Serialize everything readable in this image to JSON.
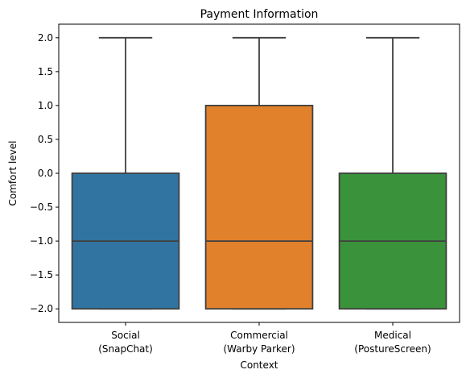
{
  "chart_data": {
    "type": "box",
    "title": "Payment Information",
    "xlabel": "Context",
    "ylabel": "Comfort level",
    "ylim": [
      -2.2,
      2.2
    ],
    "yticks": [
      {
        "value": 2.0,
        "label": "2.0"
      },
      {
        "value": 1.5,
        "label": "1.5"
      },
      {
        "value": 1.0,
        "label": "1.0"
      },
      {
        "value": 0.5,
        "label": "0.5"
      },
      {
        "value": 0.0,
        "label": "0.0"
      },
      {
        "value": -0.5,
        "label": "−0.5"
      },
      {
        "value": -1.0,
        "label": "−1.0"
      },
      {
        "value": -1.5,
        "label": "−1.5"
      },
      {
        "value": -2.0,
        "label": "−2.0"
      }
    ],
    "grid": false,
    "categories": [
      {
        "line1": "Social",
        "line2": "(SnapChat)"
      },
      {
        "line1": "Commercial",
        "line2": "(Warby Parker)"
      },
      {
        "line1": "Medical",
        "line2": "(PostureScreen)"
      }
    ],
    "boxes": [
      {
        "min": -2.0,
        "q1": -2.0,
        "median": -1.0,
        "q3": 0.0,
        "max": 2.0,
        "color": "#3274a1"
      },
      {
        "min": -2.0,
        "q1": -2.0,
        "median": -1.0,
        "q3": 1.0,
        "max": 2.0,
        "color": "#e1812c"
      },
      {
        "min": -2.0,
        "q1": -2.0,
        "median": -1.0,
        "q3": 0.0,
        "max": 2.0,
        "color": "#3a923a"
      }
    ],
    "line_color": "#3f3f3f"
  }
}
